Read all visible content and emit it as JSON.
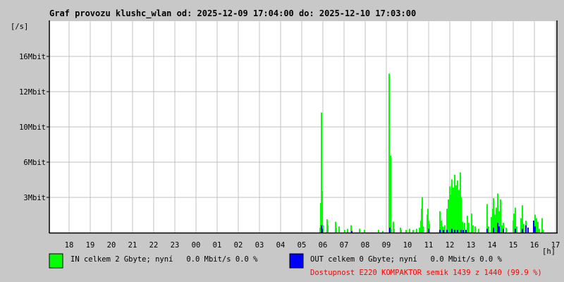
{
  "chart_data": {
    "type": "line",
    "title": "Graf provozu klushc_wlan od: 2025-12-09 17:04:00 do: 2025-12-10 17:03:00",
    "ylabel": "[/s]",
    "xlabel": "[h]",
    "x_start": "17:04",
    "x_end": "17:03",
    "x_ticks": [
      "18",
      "19",
      "20",
      "21",
      "22",
      "23",
      "00",
      "01",
      "02",
      "03",
      "04",
      "05",
      "06",
      "07",
      "08",
      "09",
      "10",
      "11",
      "12",
      "13",
      "14",
      "15",
      "16",
      "17"
    ],
    "y_ticks": [
      {
        "label": "3Mbit",
        "value": 3
      },
      {
        "label": "6Mbit",
        "value": 6
      },
      {
        "label": "10Mbit",
        "value": 10
      },
      {
        "label": "12Mbit",
        "value": 12
      },
      {
        "label": "16Mbit",
        "value": 16
      }
    ],
    "grid": true,
    "series": [
      {
        "name": "IN",
        "color": "#00ff00",
        "points": [
          [
            "05:50",
            0.4
          ],
          [
            "05:52",
            2.5
          ],
          [
            "05:54",
            10.8
          ],
          [
            "05:56",
            3.5
          ],
          [
            "05:58",
            0.6
          ],
          [
            "06:10",
            1.1
          ],
          [
            "06:12",
            0.6
          ],
          [
            "06:34",
            0.9
          ],
          [
            "06:36",
            0.4
          ],
          [
            "06:44",
            0.5
          ],
          [
            "07:00",
            0.2
          ],
          [
            "07:08",
            0.3
          ],
          [
            "07:18",
            0.6
          ],
          [
            "07:20",
            0.2
          ],
          [
            "07:42",
            0.3
          ],
          [
            "07:56",
            0.2
          ],
          [
            "08:36",
            0.2
          ],
          [
            "08:48",
            0.1
          ],
          [
            "09:06",
            14.0
          ],
          [
            "09:08",
            6.7
          ],
          [
            "09:10",
            6.7
          ],
          [
            "09:12",
            0.3
          ],
          [
            "09:18",
            0.9
          ],
          [
            "09:20",
            0.3
          ],
          [
            "09:38",
            0.4
          ],
          [
            "09:40",
            0.2
          ],
          [
            "09:54",
            0.2
          ],
          [
            "10:04",
            0.3
          ],
          [
            "10:14",
            0.2
          ],
          [
            "10:24",
            0.3
          ],
          [
            "10:32",
            0.4
          ],
          [
            "10:36",
            1.0
          ],
          [
            "10:38",
            2.0
          ],
          [
            "10:40",
            3.0
          ],
          [
            "10:42",
            0.5
          ],
          [
            "10:54",
            1.5
          ],
          [
            "10:56",
            2.0
          ],
          [
            "10:58",
            1.0
          ],
          [
            "11:00",
            0.7
          ],
          [
            "11:30",
            1.8
          ],
          [
            "11:34",
            1.0
          ],
          [
            "11:38",
            0.5
          ],
          [
            "11:44",
            0.6
          ],
          [
            "11:50",
            2.0
          ],
          [
            "11:54",
            2.8
          ],
          [
            "11:58",
            3.9
          ],
          [
            "12:00",
            3.2
          ],
          [
            "12:04",
            4.5
          ],
          [
            "12:08",
            3.8
          ],
          [
            "12:12",
            4.9
          ],
          [
            "12:16",
            4.0
          ],
          [
            "12:20",
            4.4
          ],
          [
            "12:24",
            3.6
          ],
          [
            "12:28",
            5.1
          ],
          [
            "12:30",
            3.0
          ],
          [
            "12:34",
            0.9
          ],
          [
            "12:40",
            0.8
          ],
          [
            "12:48",
            1.4
          ],
          [
            "12:52",
            0.8
          ],
          [
            "13:00",
            1.6
          ],
          [
            "13:04",
            0.6
          ],
          [
            "13:10",
            0.5
          ],
          [
            "13:20",
            0.3
          ],
          [
            "13:44",
            2.4
          ],
          [
            "13:48",
            0.5
          ],
          [
            "13:56",
            1.3
          ],
          [
            "14:00",
            2.0
          ],
          [
            "14:02",
            2.9
          ],
          [
            "14:06",
            1.5
          ],
          [
            "14:10",
            2.1
          ],
          [
            "14:14",
            3.3
          ],
          [
            "14:18",
            1.8
          ],
          [
            "14:22",
            2.8
          ],
          [
            "14:26",
            0.6
          ],
          [
            "14:30",
            0.8
          ],
          [
            "14:38",
            0.4
          ],
          [
            "14:58",
            1.0
          ],
          [
            "15:00",
            1.6
          ],
          [
            "15:04",
            2.1
          ],
          [
            "15:08",
            0.5
          ],
          [
            "15:20",
            1.2
          ],
          [
            "15:24",
            2.3
          ],
          [
            "15:28",
            0.7
          ],
          [
            "15:34",
            1.0
          ],
          [
            "15:40",
            0.4
          ],
          [
            "15:56",
            0.7
          ],
          [
            "16:00",
            1.5
          ],
          [
            "16:04",
            1.2
          ],
          [
            "16:08",
            0.9
          ],
          [
            "16:12",
            0.3
          ],
          [
            "16:20",
            1.2
          ],
          [
            "16:22",
            0.2
          ]
        ]
      },
      {
        "name": "OUT",
        "color": "#0000ff",
        "points": [
          [
            "05:54",
            0.6
          ],
          [
            "05:56",
            0.3
          ],
          [
            "07:20",
            0.1
          ],
          [
            "09:08",
            0.4
          ],
          [
            "10:58",
            0.3
          ],
          [
            "11:30",
            0.2
          ],
          [
            "11:40",
            0.2
          ],
          [
            "11:50",
            0.2
          ],
          [
            "12:04",
            0.3
          ],
          [
            "12:12",
            0.2
          ],
          [
            "12:20",
            0.2
          ],
          [
            "12:30",
            0.2
          ],
          [
            "12:36",
            0.2
          ],
          [
            "12:44",
            0.2
          ],
          [
            "13:44",
            0.3
          ],
          [
            "14:02",
            0.4
          ],
          [
            "14:14",
            0.8
          ],
          [
            "14:18",
            0.5
          ],
          [
            "14:30",
            0.3
          ],
          [
            "15:04",
            0.3
          ],
          [
            "15:24",
            0.3
          ],
          [
            "15:34",
            0.6
          ],
          [
            "15:40",
            0.4
          ],
          [
            "15:56",
            1.0
          ],
          [
            "16:00",
            0.5
          ]
        ]
      }
    ]
  },
  "legend": {
    "in_color": "#00ff00",
    "in_text": "IN celkem 2 Gbyte; nyní   0.0 Mbit/s 0.0 %",
    "out_color": "#0000ff",
    "out_text": "OUT celkem 0 Gbyte; nyní   0.0 Mbit/s 0.0 %",
    "availability_text": "Dostupnost E220 KOMPAKTOR semik 1439 z 1440 (99.9 %)",
    "availability_color": "#ff0000"
  }
}
